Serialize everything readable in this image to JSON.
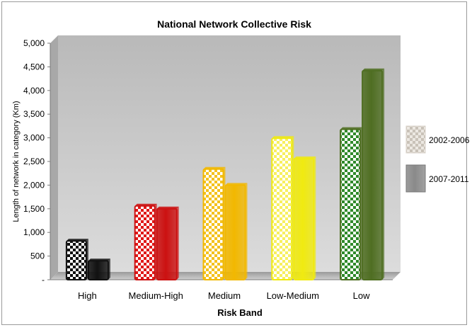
{
  "chart_data": {
    "type": "bar",
    "title": "National Network Collective Risk",
    "xlabel": "Risk Band",
    "ylabel": "Length of network in category (Km)",
    "categories": [
      "High",
      "Medium-High",
      "Medium",
      "Low-Medium",
      "Low"
    ],
    "series": [
      {
        "name": "2002-2006",
        "values": [
          820,
          1560,
          2340,
          2990,
          3180
        ],
        "pattern": "checkered"
      },
      {
        "name": "2007-2011",
        "values": [
          400,
          1500,
          2000,
          2560,
          4420
        ],
        "pattern": "solid"
      }
    ],
    "category_colors": [
      "#111111",
      "#cc1111",
      "#f2b800",
      "#f0ea10",
      "#4f6e22"
    ],
    "checker_colors": [
      "#111111",
      "#e01818",
      "#f4c21e",
      "#f7f060",
      "#2f8a2a"
    ],
    "ylim": [
      0,
      5000
    ],
    "yticks": [
      0,
      500,
      1000,
      1500,
      2000,
      2500,
      3000,
      3500,
      4000,
      4500,
      5000
    ],
    "ytick_labels": [
      "-",
      "500",
      "1,000",
      "1,500",
      "2,000",
      "2,500",
      "3,000",
      "3,500",
      "4,000",
      "4,500",
      "5,000"
    ],
    "grid": false,
    "legend_position": "right",
    "plot_background": "#c8c8c8"
  }
}
